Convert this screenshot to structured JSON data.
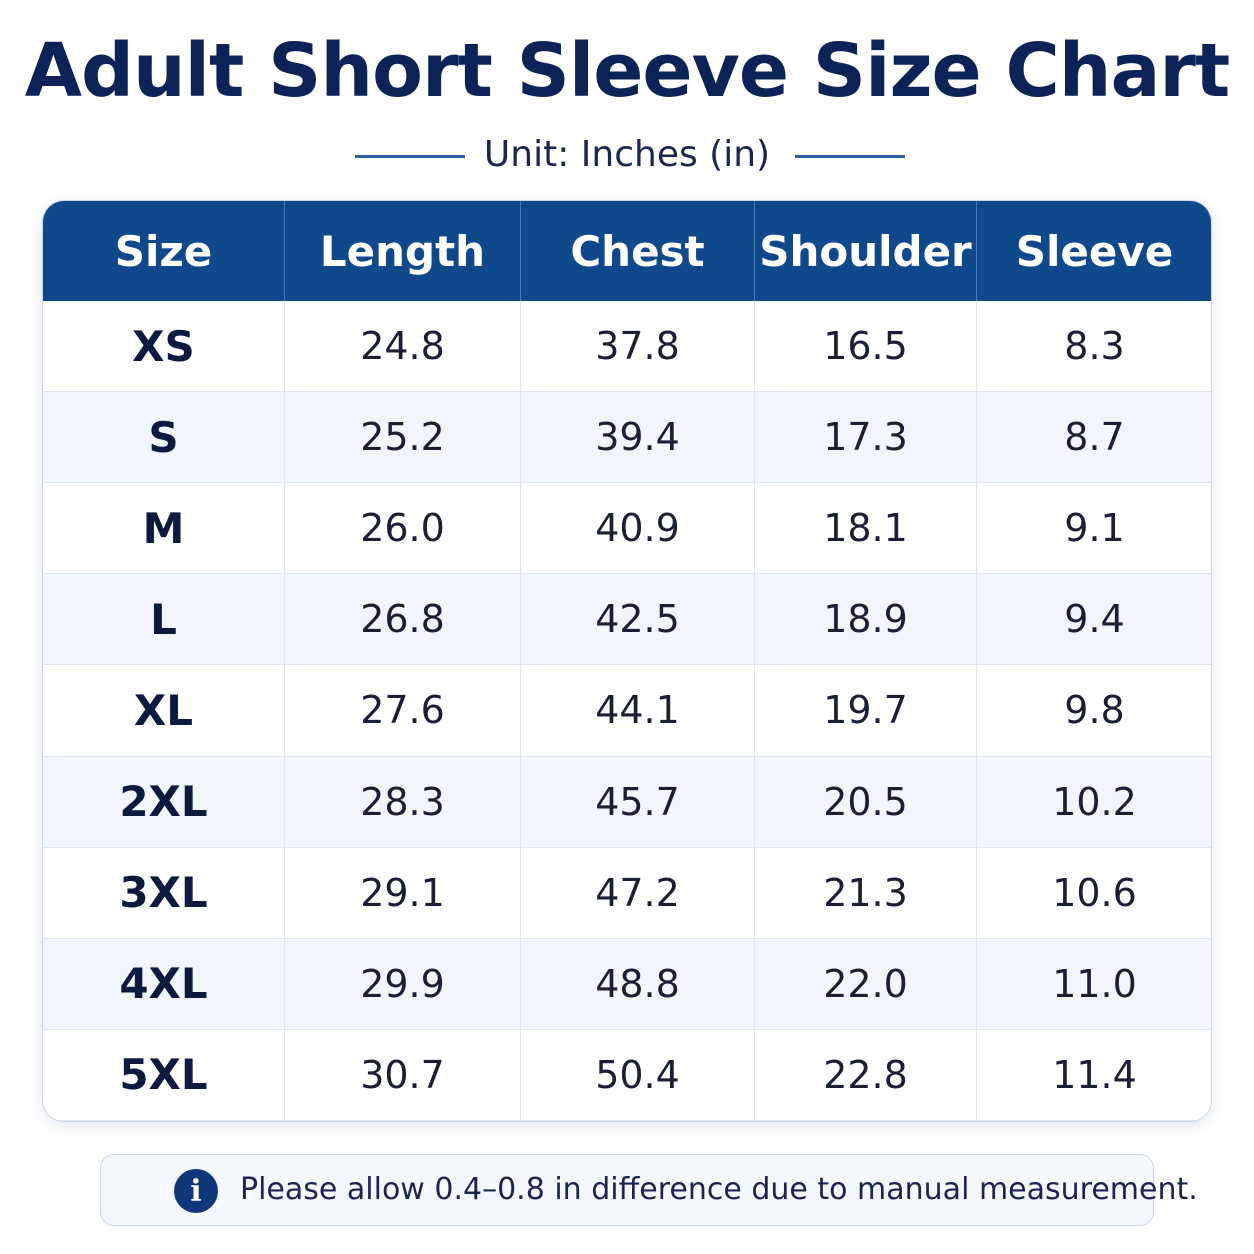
{
  "header": {
    "title": "Adult Short Sleeve Size Chart",
    "subtitle": "Unit: Inches (in)"
  },
  "table": {
    "columns": [
      "Size",
      "Length",
      "Chest",
      "Shoulder",
      "Sleeve"
    ],
    "rows": [
      [
        "XS",
        "24.8",
        "37.8",
        "16.5",
        "8.3"
      ],
      [
        "S",
        "25.2",
        "39.4",
        "17.3",
        "8.7"
      ],
      [
        "M",
        "26.0",
        "40.9",
        "18.1",
        "9.1"
      ],
      [
        "L",
        "26.8",
        "42.5",
        "18.9",
        "9.4"
      ],
      [
        "XL",
        "27.6",
        "44.1",
        "19.7",
        "9.8"
      ],
      [
        "2XL",
        "28.3",
        "45.7",
        "20.5",
        "10.2"
      ],
      [
        "3XL",
        "29.1",
        "47.2",
        "21.3",
        "10.6"
      ],
      [
        "4XL",
        "29.9",
        "48.8",
        "22.0",
        "11.0"
      ],
      [
        "5XL",
        "30.7",
        "50.4",
        "22.8",
        "11.4"
      ]
    ]
  },
  "note": {
    "icon": "i",
    "text": "Please allow 0.4–0.8 in difference due to manual measurement."
  }
}
